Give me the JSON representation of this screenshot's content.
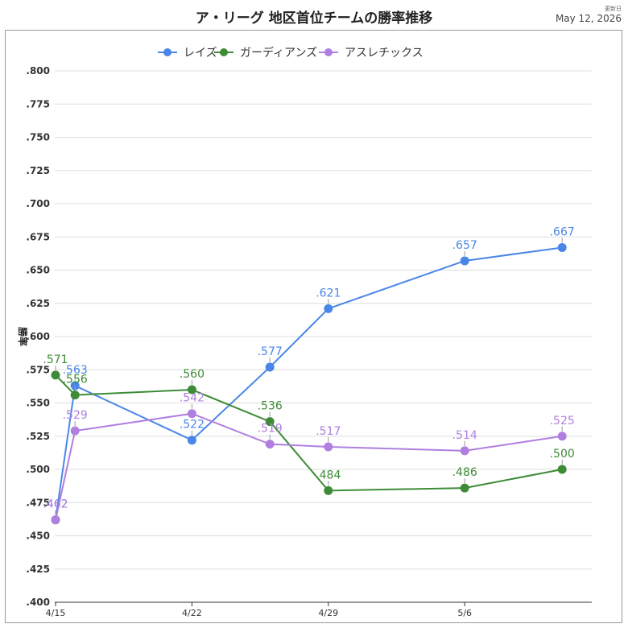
{
  "header": {
    "title": "ア・リーグ 地区首位チームの勝率推移",
    "updated_label": "更新日",
    "updated_date": "May 12, 2026"
  },
  "chart_data": {
    "type": "line",
    "title": "ア・リーグ 地区首位チームの勝率推移",
    "xlabel": "",
    "ylabel": "勝率",
    "x_ticks": [
      "4/15",
      "4/22",
      "4/29",
      "5/6"
    ],
    "y_ticks": [
      ".400",
      ".425",
      ".450",
      ".475",
      ".500",
      ".525",
      ".550",
      ".575",
      ".600",
      ".625",
      ".650",
      ".675",
      ".700",
      ".725",
      ".750",
      ".775",
      ".800"
    ],
    "ylim": [
      0.4,
      0.8
    ],
    "grid": true,
    "legend": "top-center",
    "series": [
      {
        "name": "レイズ",
        "color": "#4a86e8",
        "points": [
          {
            "x": "4/15",
            "y": 0.462,
            "label": ".462"
          },
          {
            "x": "4/16",
            "y": 0.563,
            "label": ".563"
          },
          {
            "x": "4/22",
            "y": 0.522,
            "label": ".522"
          },
          {
            "x": "4/26",
            "y": 0.577,
            "label": ".577"
          },
          {
            "x": "4/29",
            "y": 0.621,
            "label": ".621"
          },
          {
            "x": "5/6",
            "y": 0.657,
            "label": ".657"
          },
          {
            "x": "5/11",
            "y": 0.667,
            "label": ".667"
          }
        ]
      },
      {
        "name": "ガーディアンズ",
        "color": "#3d8b37",
        "points": [
          {
            "x": "4/15",
            "y": 0.571,
            "label": ".571"
          },
          {
            "x": "4/16",
            "y": 0.556,
            "label": ".556"
          },
          {
            "x": "4/22",
            "y": 0.56,
            "label": ".560"
          },
          {
            "x": "4/26",
            "y": 0.536,
            "label": ".536"
          },
          {
            "x": "4/29",
            "y": 0.484,
            "label": ".484"
          },
          {
            "x": "5/6",
            "y": 0.486,
            "label": ".486"
          },
          {
            "x": "5/11",
            "y": 0.5,
            "label": ".500"
          }
        ]
      },
      {
        "name": "アスレチックス",
        "color": "#b07fe0",
        "points": [
          {
            "x": "4/15",
            "y": 0.462,
            "label": ".462"
          },
          {
            "x": "4/16",
            "y": 0.529,
            "label": ".529"
          },
          {
            "x": "4/22",
            "y": 0.542,
            "label": ".542"
          },
          {
            "x": "4/26",
            "y": 0.519,
            "label": ".519"
          },
          {
            "x": "4/29",
            "y": 0.517,
            "label": ".517"
          },
          {
            "x": "5/6",
            "y": 0.514,
            "label": ".514"
          },
          {
            "x": "5/11",
            "y": 0.525,
            "label": ".525"
          }
        ]
      }
    ]
  }
}
